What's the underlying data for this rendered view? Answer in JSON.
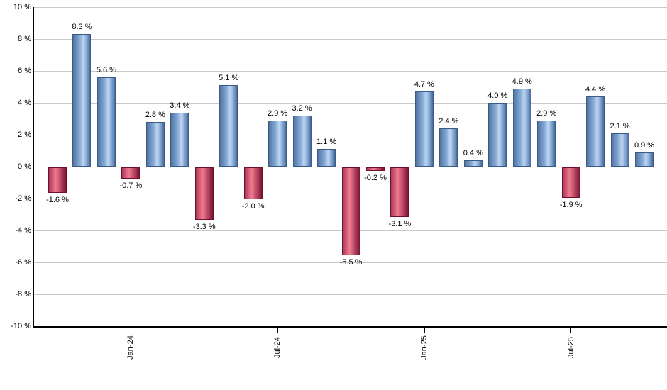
{
  "chart_data": {
    "type": "bar",
    "title": "",
    "xlabel": "",
    "ylabel": "",
    "ylim": [
      -10,
      10
    ],
    "grid": true,
    "legend": "none",
    "values": [
      -1.6,
      8.3,
      5.6,
      -0.7,
      2.8,
      3.4,
      -3.3,
      5.1,
      -2.0,
      2.9,
      3.2,
      1.1,
      -5.5,
      -0.2,
      -3.1,
      4.7,
      2.4,
      0.4,
      4.0,
      4.9,
      2.9,
      -1.9,
      4.4,
      2.1,
      0.9
    ],
    "bar_labels": [
      "-1.6 %",
      "8.3 %",
      "5.6 %",
      "-0.7 %",
      "2.8 %",
      "3.4 %",
      "-3.3 %",
      "5.1 %",
      "-2.0 %",
      "2.9 %",
      "3.2 %",
      "1.1 %",
      "-5.5 %",
      "-0.2 %",
      "-3.1 %",
      "4.7 %",
      "2.4 %",
      "0.4 %",
      "4.0 %",
      "4.9 %",
      "2.9 %",
      "-1.9 %",
      "4.4 %",
      "2.1 %",
      "0.9 %"
    ],
    "y_ticks": [
      {
        "value": 10,
        "label": "10 %"
      },
      {
        "value": 8,
        "label": "8 %"
      },
      {
        "value": 6,
        "label": "6 %"
      },
      {
        "value": 4,
        "label": "4 %"
      },
      {
        "value": 2,
        "label": "2 %"
      },
      {
        "value": 0,
        "label": "0 %"
      },
      {
        "value": -2,
        "label": "-2 %"
      },
      {
        "value": -4,
        "label": "-4 %"
      },
      {
        "value": -6,
        "label": "-6 %"
      },
      {
        "value": -8,
        "label": "-8 %"
      },
      {
        "value": -10,
        "label": "-10 %"
      }
    ],
    "x_ticks": [
      {
        "bar_index": 3,
        "label": "Jan-24"
      },
      {
        "bar_index": 9,
        "label": "Jul-24"
      },
      {
        "bar_index": 15,
        "label": "Jan-25"
      },
      {
        "bar_index": 21,
        "label": "Jul-25"
      }
    ],
    "colors": {
      "positive_bar_edge": "#4b6b9a",
      "positive_bar_highlight": "#c0d6f2",
      "negative_bar_edge": "#7b1432",
      "negative_bar_highlight": "#ef7a90",
      "gridline": "#c9c9c9",
      "axis": "#000000",
      "label_text": "#000000",
      "background": "#ffffff"
    }
  }
}
